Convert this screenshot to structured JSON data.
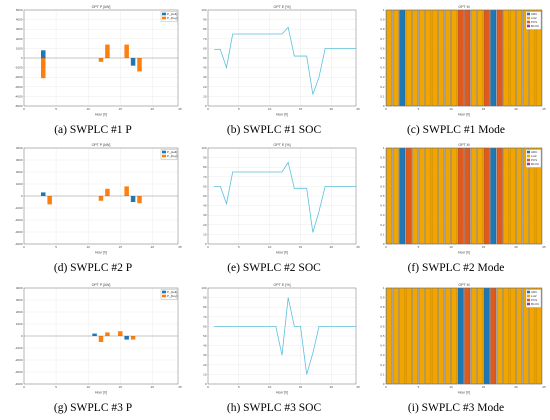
{
  "colors": {
    "P_{sell}": "#1f77b4",
    "P_{buy}": "#ff7f0e",
    "SOC": "#5bc0de",
    "ARC": "#1f77b4",
    "LH2": "#f0a500",
    "PCS": "#e05a1e",
    "BLOC": "#8e3ea8"
  },
  "chart_data": [
    {
      "type": "bar",
      "title": "OPT P [kW]",
      "xlabel": "Hour [h]",
      "ylabel": "",
      "caption": "(a) SWPLC #1 P",
      "xlim": [
        0,
        24
      ],
      "ylim": [
        -5000,
        5000
      ],
      "xticks": [
        0,
        5,
        10,
        15,
        20,
        25
      ],
      "yticks": [
        -5000,
        -4000,
        -3000,
        -2000,
        -1000,
        0,
        1000,
        2000,
        3000,
        4000,
        5000
      ],
      "legend": "top-right",
      "x": [
        3,
        12,
        13,
        16,
        17,
        18
      ],
      "series": [
        {
          "name": "P_{sell}",
          "values": [
            800,
            0,
            0,
            0,
            -800,
            0
          ]
        },
        {
          "name": "P_{buy}",
          "values": [
            -2100,
            -400,
            1400,
            1400,
            0,
            -1400
          ]
        }
      ]
    },
    {
      "type": "line",
      "title": "OPT E [%]",
      "xlabel": "Hour [h]",
      "ylabel": "",
      "caption": "(b) SWPLC #1 SOC",
      "xlim": [
        0,
        24
      ],
      "ylim": [
        0,
        100
      ],
      "xticks": [
        0,
        5,
        10,
        15,
        20,
        25
      ],
      "yticks": [
        0,
        10,
        20,
        30,
        40,
        50,
        60,
        70,
        80,
        90,
        100
      ],
      "x": [
        1,
        2,
        3,
        4,
        5,
        6,
        7,
        8,
        9,
        10,
        11,
        12,
        13,
        14,
        15,
        16,
        17,
        18,
        19,
        20,
        21,
        22,
        23,
        24
      ],
      "series": [
        {
          "name": "",
          "values": [
            59,
            59,
            40,
            75,
            75,
            75,
            75,
            75,
            75,
            75,
            75,
            75,
            82,
            52,
            52,
            52,
            12,
            30,
            60,
            60,
            60,
            60,
            60,
            60
          ]
        }
      ]
    },
    {
      "type": "bar",
      "title": "OPT M",
      "xlabel": "Hour [h]",
      "ylabel": "",
      "caption": "(c) SWPLC #1 Mode",
      "xlim": [
        0,
        24
      ],
      "ylim": [
        0,
        1
      ],
      "xticks": [
        0,
        5,
        10,
        15,
        20,
        25
      ],
      "yticks": [
        0,
        0.1,
        0.2,
        0.3,
        0.4,
        0.5,
        0.6,
        0.7,
        0.8,
        0.9,
        1
      ],
      "legend": "top-right",
      "legend_entries": [
        "ARC",
        "LH2",
        "PCS",
        "BLOC"
      ],
      "categories": [
        1,
        2,
        3,
        4,
        5,
        6,
        7,
        8,
        9,
        10,
        11,
        12,
        13,
        14,
        15,
        16,
        17,
        18,
        19,
        20,
        21,
        22,
        23,
        24
      ],
      "modes": [
        "LH2",
        "LH2",
        "ARC",
        "LH2",
        "LH2",
        "LH2",
        "LH2",
        "LH2",
        "LH2",
        "LH2",
        "LH2",
        "PCS",
        "PCS",
        "LH2",
        "LH2",
        "PCS",
        "ARC",
        "PCS",
        "LH2",
        "LH2",
        "LH2",
        "LH2",
        "LH2",
        "LH2"
      ]
    },
    {
      "type": "bar",
      "title": "OPT P [kW]",
      "xlabel": "Hour [h]",
      "ylabel": "",
      "caption": "(d) SWPLC #2 P",
      "xlim": [
        0,
        24
      ],
      "ylim": [
        -4000,
        4000
      ],
      "xticks": [
        0,
        5,
        10,
        15,
        20,
        25
      ],
      "yticks": [
        -4000,
        -3000,
        -2000,
        -1000,
        0,
        1000,
        2000,
        3000,
        4000
      ],
      "legend": "top-right",
      "x": [
        3,
        4,
        12,
        13,
        16,
        17,
        18
      ],
      "series": [
        {
          "name": "P_{sell}",
          "values": [
            300,
            0,
            0,
            0,
            0,
            -500,
            0
          ]
        },
        {
          "name": "P_{buy}",
          "values": [
            0,
            -700,
            -400,
            600,
            800,
            0,
            -600
          ]
        }
      ]
    },
    {
      "type": "line",
      "title": "OPT E [%]",
      "xlabel": "Hour [h]",
      "ylabel": "",
      "caption": "(e) SWPLC #2 SOC",
      "xlim": [
        0,
        24
      ],
      "ylim": [
        0,
        100
      ],
      "xticks": [
        0,
        5,
        10,
        15,
        20,
        25
      ],
      "yticks": [
        0,
        10,
        20,
        30,
        40,
        50,
        60,
        70,
        80,
        90,
        100
      ],
      "x": [
        1,
        2,
        3,
        4,
        5,
        6,
        7,
        8,
        9,
        10,
        11,
        12,
        13,
        14,
        15,
        16,
        17,
        18,
        19,
        20,
        21,
        22,
        23,
        24
      ],
      "series": [
        {
          "name": "",
          "values": [
            60,
            60,
            42,
            75,
            75,
            75,
            75,
            75,
            75,
            75,
            75,
            75,
            85,
            58,
            58,
            58,
            12,
            34,
            60,
            60,
            60,
            60,
            60,
            60
          ]
        }
      ]
    },
    {
      "type": "bar",
      "title": "OPT M",
      "xlabel": "Hour [h]",
      "ylabel": "",
      "caption": "(f) SWPLC #2 Mode",
      "xlim": [
        0,
        24
      ],
      "ylim": [
        0,
        1
      ],
      "xticks": [
        0,
        5,
        10,
        15,
        20,
        25
      ],
      "yticks": [
        0,
        0.1,
        0.2,
        0.3,
        0.4,
        0.5,
        0.6,
        0.7,
        0.8,
        0.9,
        1
      ],
      "legend": "top-right",
      "legend_entries": [
        "ARC",
        "LH2",
        "PCS",
        "BLOC"
      ],
      "categories": [
        1,
        2,
        3,
        4,
        5,
        6,
        7,
        8,
        9,
        10,
        11,
        12,
        13,
        14,
        15,
        16,
        17,
        18,
        19,
        20,
        21,
        22,
        23,
        24
      ],
      "modes": [
        "LH2",
        "LH2",
        "ARC",
        "PCS",
        "LH2",
        "LH2",
        "LH2",
        "LH2",
        "LH2",
        "LH2",
        "LH2",
        "PCS",
        "PCS",
        "LH2",
        "LH2",
        "PCS",
        "ARC",
        "PCS",
        "LH2",
        "LH2",
        "LH2",
        "LH2",
        "LH2",
        "LH2"
      ]
    },
    {
      "type": "bar",
      "title": "OPT P [kW]",
      "xlabel": "Hour [h]",
      "ylabel": "",
      "caption": "(g) SWPLC #3 P",
      "xlim": [
        0,
        24
      ],
      "ylim": [
        -4000,
        4000
      ],
      "xticks": [
        0,
        5,
        10,
        15,
        20,
        25
      ],
      "yticks": [
        -4000,
        -3000,
        -2000,
        -1000,
        0,
        1000,
        2000,
        3000,
        4000
      ],
      "legend": "top-right",
      "x": [
        11,
        12,
        13,
        15,
        16,
        17
      ],
      "series": [
        {
          "name": "P_{sell}",
          "values": [
            200,
            0,
            0,
            0,
            -300,
            0
          ]
        },
        {
          "name": "P_{buy}",
          "values": [
            0,
            -500,
            300,
            400,
            0,
            -300
          ]
        }
      ]
    },
    {
      "type": "line",
      "title": "OPT E [%]",
      "xlabel": "Hour [h]",
      "ylabel": "",
      "caption": "(h) SWPLC #3 SOC",
      "xlim": [
        0,
        24
      ],
      "ylim": [
        0,
        100
      ],
      "xticks": [
        0,
        5,
        10,
        15,
        20,
        25
      ],
      "yticks": [
        0,
        10,
        20,
        30,
        40,
        50,
        60,
        70,
        80,
        90,
        100
      ],
      "x": [
        1,
        2,
        3,
        4,
        5,
        6,
        7,
        8,
        9,
        10,
        11,
        12,
        13,
        14,
        15,
        16,
        17,
        18,
        19,
        20,
        21,
        22,
        23,
        24
      ],
      "series": [
        {
          "name": "",
          "values": [
            60,
            60,
            60,
            60,
            60,
            60,
            60,
            60,
            60,
            60,
            60,
            30,
            90,
            60,
            60,
            10,
            32,
            60,
            60,
            60,
            60,
            60,
            60,
            60
          ]
        }
      ]
    },
    {
      "type": "bar",
      "title": "OPT M",
      "xlabel": "Hour [h]",
      "ylabel": "",
      "caption": "(i) SWPLC #3 Mode",
      "xlim": [
        0,
        24
      ],
      "ylim": [
        0,
        1
      ],
      "xticks": [
        0,
        5,
        10,
        15,
        20,
        25
      ],
      "yticks": [
        0,
        0.1,
        0.2,
        0.3,
        0.4,
        0.5,
        0.6,
        0.7,
        0.8,
        0.9,
        1
      ],
      "legend": "top-right",
      "legend_entries": [
        "ARC",
        "LH2",
        "PCS",
        "BLOC"
      ],
      "categories": [
        1,
        2,
        3,
        4,
        5,
        6,
        7,
        8,
        9,
        10,
        11,
        12,
        13,
        14,
        15,
        16,
        17,
        18,
        19,
        20,
        21,
        22,
        23,
        24
      ],
      "modes": [
        "LH2",
        "LH2",
        "LH2",
        "LH2",
        "LH2",
        "LH2",
        "LH2",
        "LH2",
        "LH2",
        "LH2",
        "LH2",
        "ARC",
        "PCS",
        "LH2",
        "LH2",
        "ARC",
        "PCS",
        "LH2",
        "LH2",
        "LH2",
        "LH2",
        "LH2",
        "LH2",
        "LH2"
      ]
    }
  ]
}
